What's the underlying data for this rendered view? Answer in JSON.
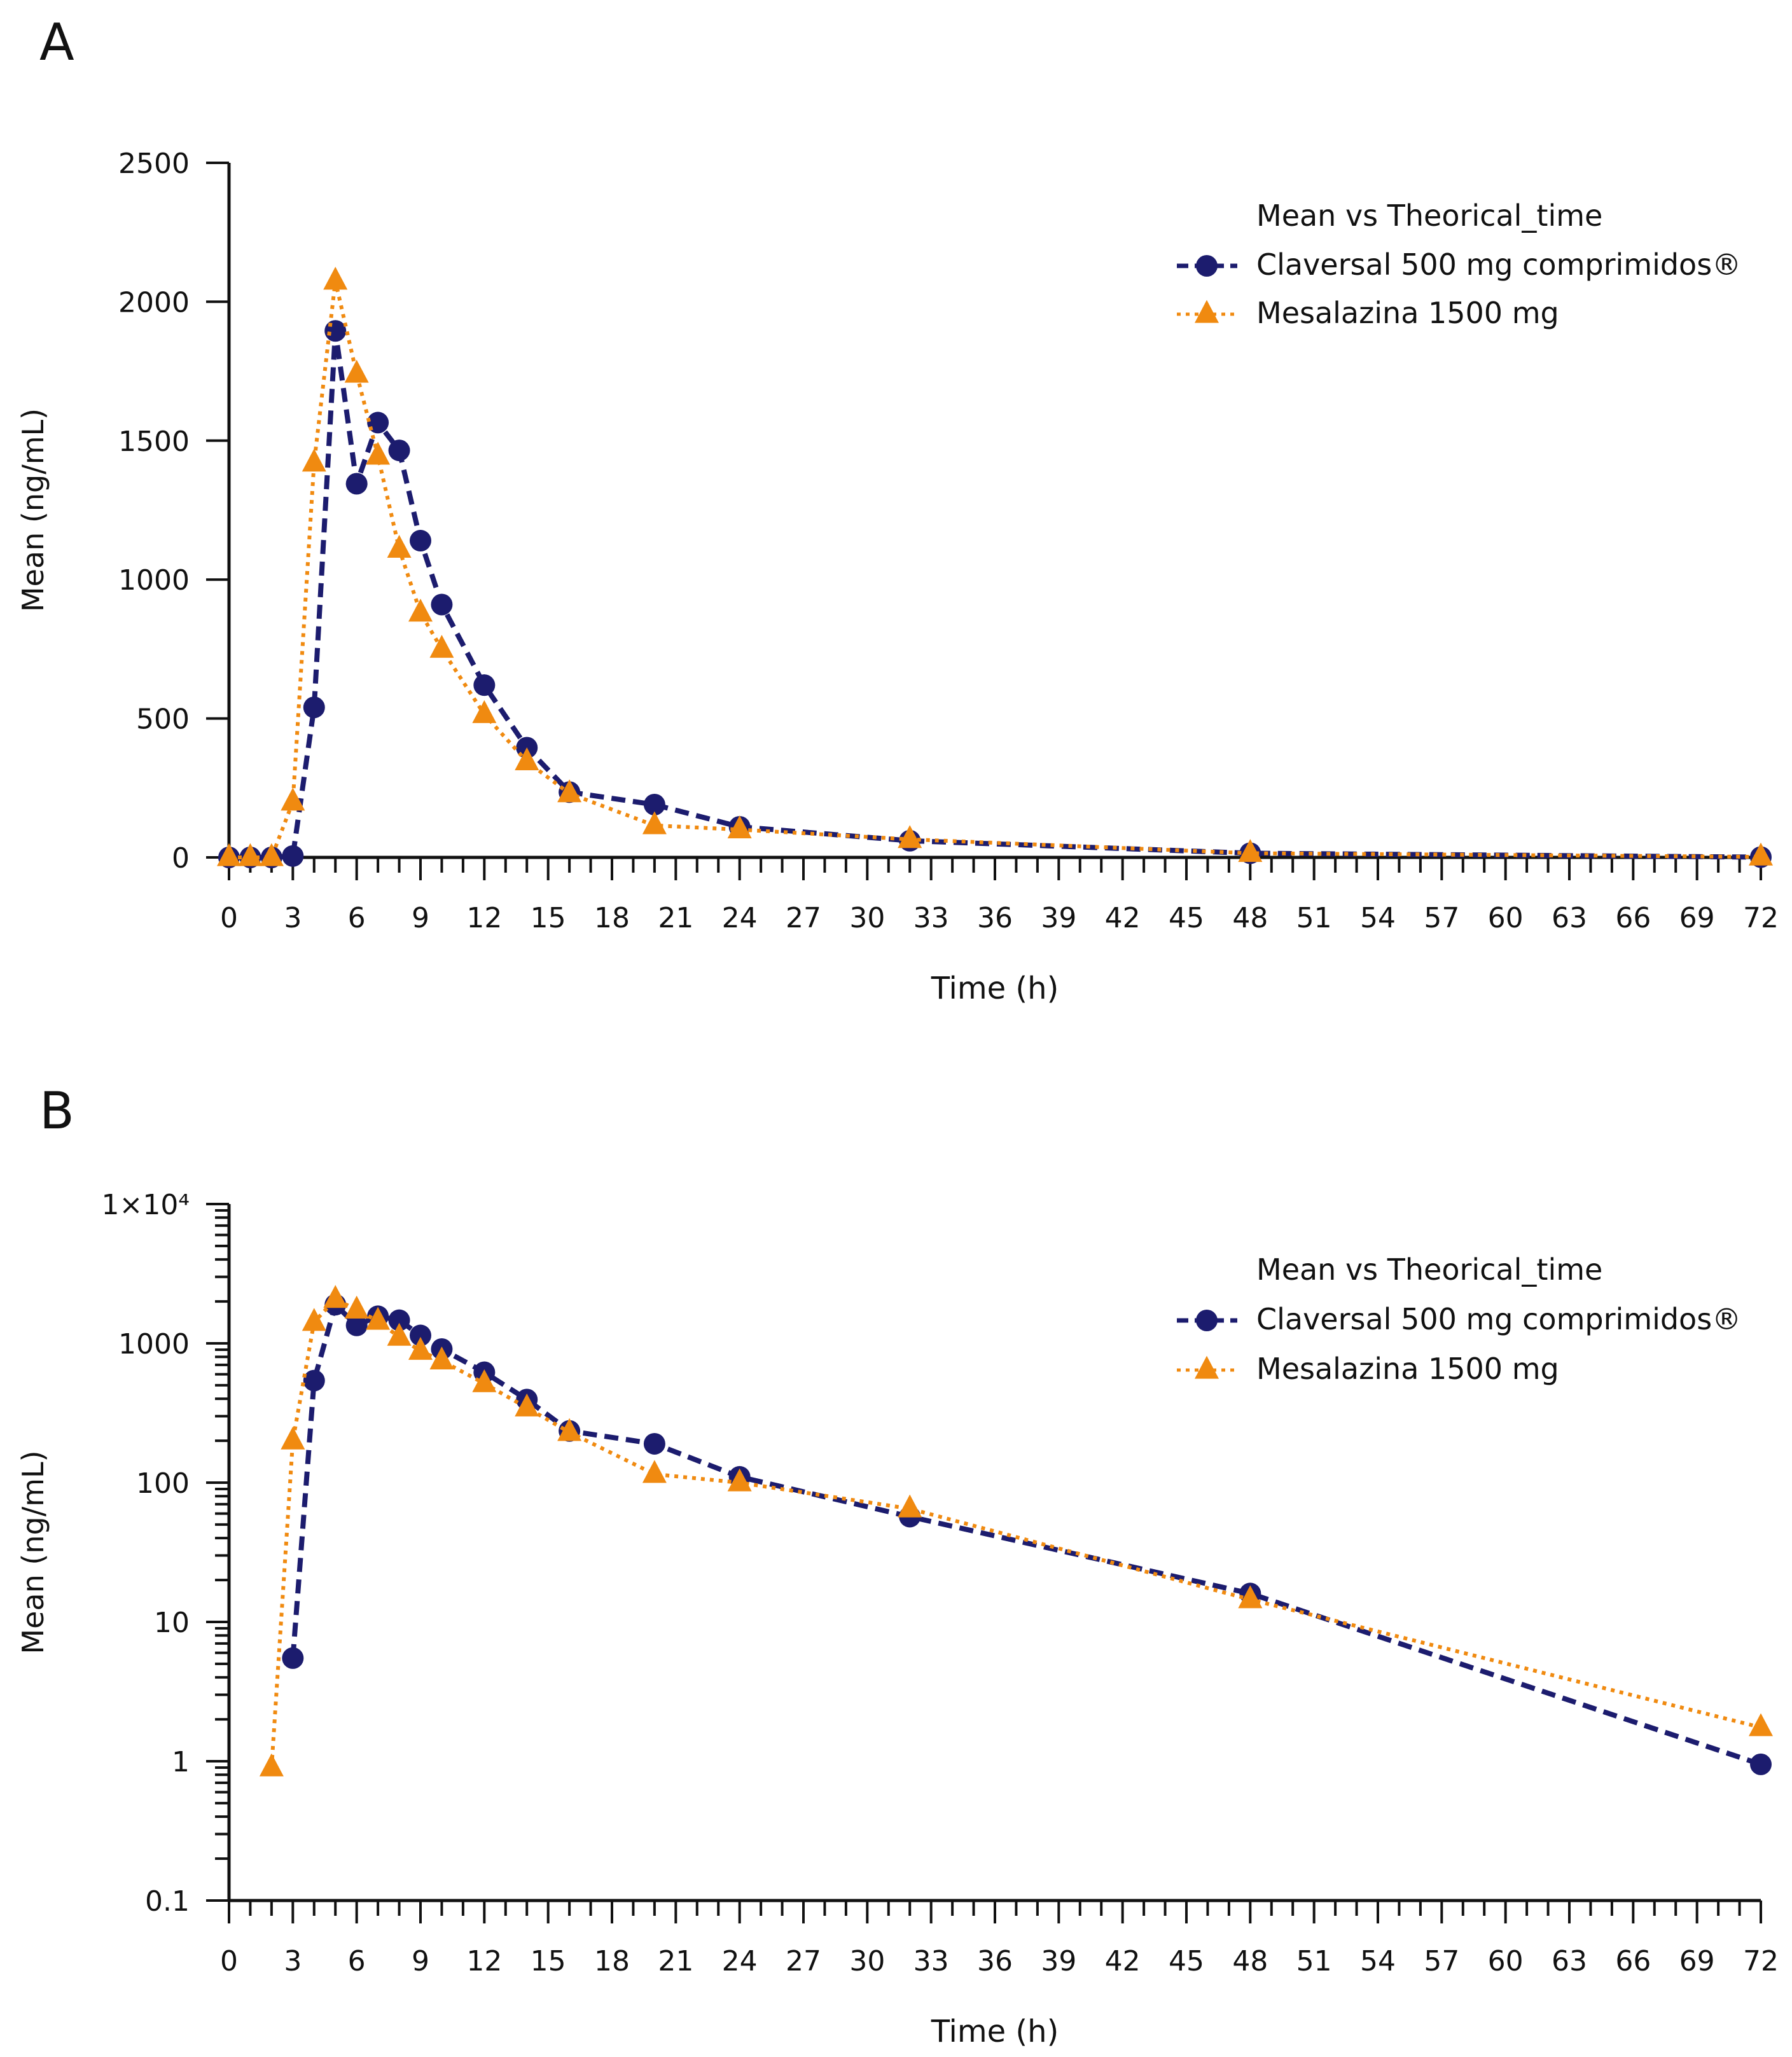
{
  "colors": {
    "claversal": "#1c1c6e",
    "mesalazina": "#f08a10",
    "axis": "#111111"
  },
  "chart_data": [
    {
      "panel_label": "A",
      "type": "line",
      "yscale": "linear",
      "title": "",
      "xlabel": "Time (h)",
      "ylabel": "Mean (ng/mL)",
      "xlim": [
        0,
        72
      ],
      "ylim": [
        0,
        2500
      ],
      "xticks": [
        "0",
        "3",
        "6",
        "9",
        "12",
        "15",
        "18",
        "21",
        "24",
        "27",
        "30",
        "33",
        "36",
        "39",
        "42",
        "45",
        "48",
        "51",
        "54",
        "57",
        "60",
        "63",
        "66",
        "69",
        "72"
      ],
      "yticks": [
        "0",
        "500",
        "1000",
        "1500",
        "2000",
        "2500"
      ],
      "yticks_values": [
        0,
        500,
        1000,
        1500,
        2000,
        2500
      ],
      "legend": {
        "title": "Mean vs Theorical_time",
        "placement": "top-right"
      },
      "series": [
        {
          "name": "Claversal 500 mg comprimidos®",
          "color": "#1c1c6e",
          "marker": "circle",
          "linestyle": "dashed",
          "x": [
            0,
            1,
            2,
            3,
            4,
            5,
            6,
            7,
            8,
            9,
            10,
            12,
            14,
            16,
            20,
            24,
            32,
            48,
            72
          ],
          "y": [
            0,
            0,
            0,
            5,
            540,
            1895,
            1345,
            1565,
            1465,
            1140,
            910,
            620,
            395,
            235,
            190,
            110,
            60,
            15,
            1
          ]
        },
        {
          "name": "Mesalazina 1500 mg",
          "color": "#f08a10",
          "marker": "triangle",
          "linestyle": "dotted",
          "x": [
            0,
            1,
            2,
            3,
            4,
            5,
            6,
            7,
            8,
            9,
            10,
            12,
            14,
            16,
            20,
            24,
            32,
            48,
            72
          ],
          "y": [
            0,
            0,
            0,
            200,
            1420,
            2075,
            1740,
            1445,
            1110,
            880,
            750,
            515,
            345,
            230,
            115,
            100,
            65,
            15,
            2
          ]
        }
      ]
    },
    {
      "panel_label": "B",
      "type": "line",
      "yscale": "log",
      "title": "",
      "xlabel": "Time (h)",
      "ylabel": "Mean (ng/mL)",
      "xlim": [
        0,
        72
      ],
      "ylim": [
        0.1,
        10000
      ],
      "xticks": [
        "0",
        "3",
        "6",
        "9",
        "12",
        "15",
        "18",
        "21",
        "24",
        "27",
        "30",
        "33",
        "36",
        "39",
        "42",
        "45",
        "48",
        "51",
        "54",
        "57",
        "60",
        "63",
        "66",
        "69",
        "72"
      ],
      "yticks": [
        "0.1",
        "1",
        "10",
        "100",
        "1000",
        "1×10⁴"
      ],
      "yticks_values": [
        0.1,
        1,
        10,
        100,
        1000,
        10000
      ],
      "legend": {
        "title": "Mean vs Theorical_time",
        "placement": "top-right"
      },
      "series": [
        {
          "name": "Claversal 500 mg comprimidos®",
          "color": "#1c1c6e",
          "marker": "circle",
          "linestyle": "dashed",
          "x": [
            3,
            4,
            5,
            6,
            7,
            8,
            9,
            10,
            12,
            14,
            16,
            20,
            24,
            32,
            48,
            72
          ],
          "y": [
            5.5,
            540,
            1895,
            1345,
            1565,
            1465,
            1140,
            910,
            620,
            395,
            235,
            190,
            110,
            57,
            16,
            0.95
          ]
        },
        {
          "name": "Mesalazina 1500 mg",
          "color": "#f08a10",
          "marker": "triangle",
          "linestyle": "dotted",
          "x": [
            2,
            3,
            4,
            5,
            6,
            7,
            8,
            9,
            10,
            12,
            14,
            16,
            20,
            24,
            32,
            48,
            72
          ],
          "y": [
            0.9,
            200,
            1420,
            2075,
            1740,
            1445,
            1110,
            880,
            750,
            515,
            345,
            230,
            115,
            100,
            65,
            14.5,
            1.75
          ]
        }
      ]
    }
  ]
}
